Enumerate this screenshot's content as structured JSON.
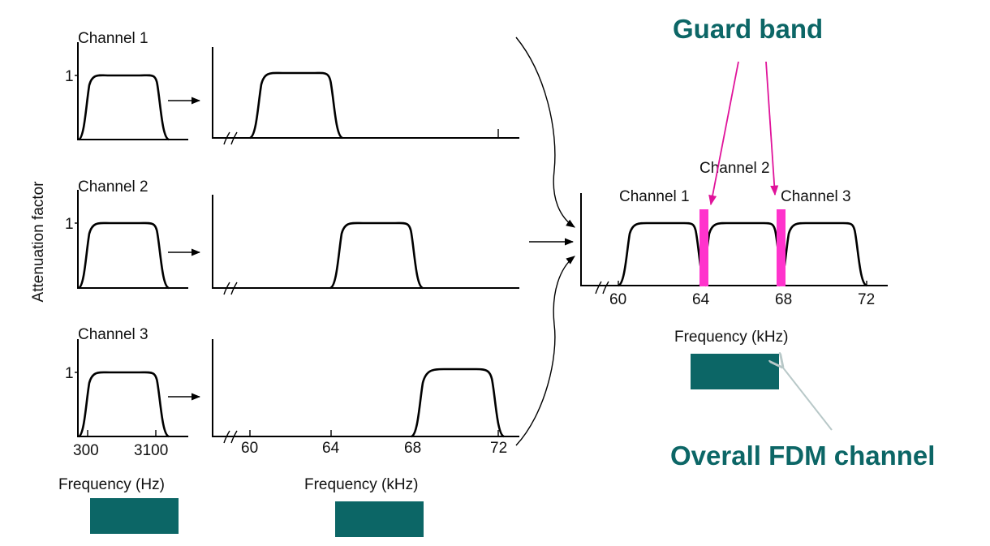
{
  "colors": {
    "accent": "#0c6666",
    "guard": "#ff33cc",
    "pointer": "#e0139a",
    "gray_arrow": "#b8c8c8"
  },
  "left": {
    "y_axis_label": "Attenuation factor",
    "tick_one": "1",
    "channels": [
      "Channel 1",
      "Channel 2",
      "Channel 3"
    ],
    "x_ticks": [
      "300",
      "3100"
    ],
    "x_label": "Frequency (Hz)"
  },
  "middle": {
    "x_ticks": [
      "60",
      "64",
      "68",
      "72"
    ],
    "x_label": "Frequency (kHz)"
  },
  "right": {
    "channels": [
      "Channel 1",
      "Channel 2",
      "Channel 3"
    ],
    "x_ticks": [
      "60",
      "64",
      "68",
      "72"
    ],
    "x_label": "Frequency (kHz)",
    "guard_band_label": "Guard band",
    "overall_label": "Overall FDM channel"
  }
}
